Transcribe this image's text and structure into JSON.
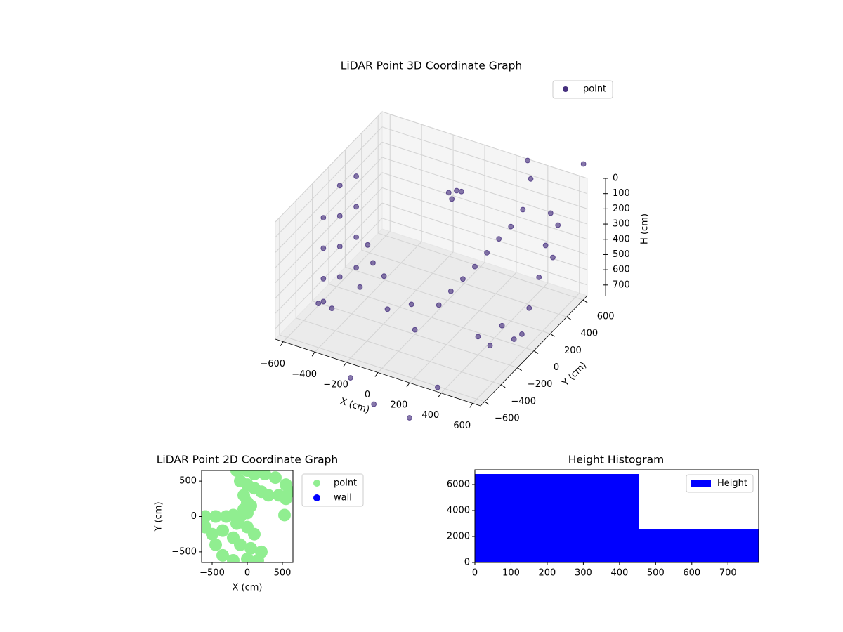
{
  "chart_data": [
    {
      "type": "scatter3d",
      "title": "LiDAR Point 3D Coordinate Graph",
      "xlabel": "X (cm)",
      "ylabel": "Y (cm)",
      "zlabel": "H (cm)",
      "xlim": [
        -650,
        650
      ],
      "ylim": [
        -650,
        650
      ],
      "zlim": [
        770,
        0
      ],
      "xticks": [
        {
          "value": -600,
          "label": "−600"
        },
        {
          "value": -400,
          "label": "−400"
        },
        {
          "value": -200,
          "label": "−200"
        },
        0,
        200,
        400,
        600
      ],
      "yticks": [
        {
          "value": -600,
          "label": "−600"
        },
        {
          "value": -400,
          "label": "−400"
        },
        {
          "value": -200,
          "label": "−200"
        },
        0,
        200,
        400,
        600
      ],
      "zticks": [
        0,
        100,
        200,
        300,
        400,
        500,
        600,
        700
      ],
      "grid": true,
      "legend": "upper right",
      "series": [
        {
          "name": "point",
          "color": "#46307e",
          "x": [
            -580,
            -580,
            -580,
            -580,
            -580,
            -580,
            -580,
            -580,
            -580,
            -580,
            -580,
            -580,
            -400,
            -200,
            0,
            -300,
            -100,
            100,
            200,
            300,
            400,
            450,
            150,
            250,
            350,
            600,
            620,
            630,
            620,
            600,
            620,
            640,
            400,
            500,
            550,
            450,
            -100,
            -150,
            -120,
            -80,
            350,
            380,
            600,
            -200,
            0,
            200,
            300,
            -560,
            -560,
            -500,
            -500
          ],
          "y": [
            -200,
            -200,
            -200,
            -200,
            0,
            0,
            0,
            0,
            200,
            200,
            200,
            200,
            -100,
            -150,
            -200,
            0,
            -50,
            -100,
            0,
            100,
            200,
            250,
            -50,
            50,
            150,
            300,
            200,
            100,
            0,
            -50,
            350,
            250,
            -200,
            -100,
            -50,
            -150,
            500,
            500,
            480,
            520,
            500,
            480,
            700,
            -600,
            -700,
            -650,
            -500,
            -300,
            300,
            -250,
            250
          ],
          "z": [
            200,
            400,
            600,
            750,
            100,
            300,
            500,
            700,
            150,
            350,
            550,
            750,
            650,
            700,
            740,
            600,
            690,
            600,
            450,
            300,
            150,
            50,
            520,
            380,
            220,
            50,
            200,
            350,
            500,
            650,
            150,
            300,
            650,
            600,
            700,
            720,
            250,
            280,
            300,
            260,
            -100,
            0,
            -50,
            900,
            950,
            1000,
            850,
            700,
            650,
            740,
            720
          ]
        }
      ]
    },
    {
      "type": "scatter",
      "title": "LiDAR Point 2D Coordinate Graph",
      "xlabel": "X (cm)",
      "ylabel": "Y (cm)",
      "xlim": [
        -650,
        650
      ],
      "ylim": [
        -650,
        650
      ],
      "xticks": [
        {
          "value": -500,
          "label": "−500"
        },
        0,
        500
      ],
      "yticks": [
        {
          "value": -500,
          "label": "−500"
        },
        0,
        500
      ],
      "legend": "outside right",
      "series": [
        {
          "name": "point",
          "color": "#90ee90",
          "x": [
            -150,
            0,
            100,
            250,
            400,
            550,
            600,
            -100,
            0,
            100,
            200,
            300,
            450,
            550,
            -50,
            0,
            -50,
            0,
            -100,
            50,
            -600,
            -450,
            -300,
            -200,
            -600,
            -500,
            -450,
            -350,
            -200,
            0,
            150,
            -350,
            -200,
            -100,
            50,
            100,
            0,
            -150,
            200,
            530
          ],
          "y": [
            650,
            650,
            600,
            600,
            550,
            450,
            350,
            500,
            450,
            400,
            350,
            300,
            300,
            250,
            300,
            200,
            100,
            50,
            0,
            150,
            0,
            0,
            0,
            20,
            -150,
            -250,
            -400,
            -550,
            -620,
            -600,
            -620,
            -200,
            -300,
            -400,
            -450,
            -250,
            -150,
            -100,
            -500,
            20
          ]
        },
        {
          "name": "wall",
          "color": "#0000ff",
          "x": [],
          "y": []
        }
      ]
    },
    {
      "type": "histogram",
      "title": "Height Histogram",
      "bins": [
        0,
        453,
        785
      ],
      "counts": [
        6810,
        2540
      ],
      "xlim": [
        0,
        785
      ],
      "ylim": [
        0,
        7135
      ],
      "xticks": [
        0,
        100,
        200,
        300,
        400,
        500,
        600,
        700
      ],
      "yticks": [
        0,
        2000,
        4000,
        6000
      ],
      "legend": "upper right",
      "series": [
        {
          "name": "Height",
          "color": "#0000ff"
        }
      ]
    }
  ]
}
